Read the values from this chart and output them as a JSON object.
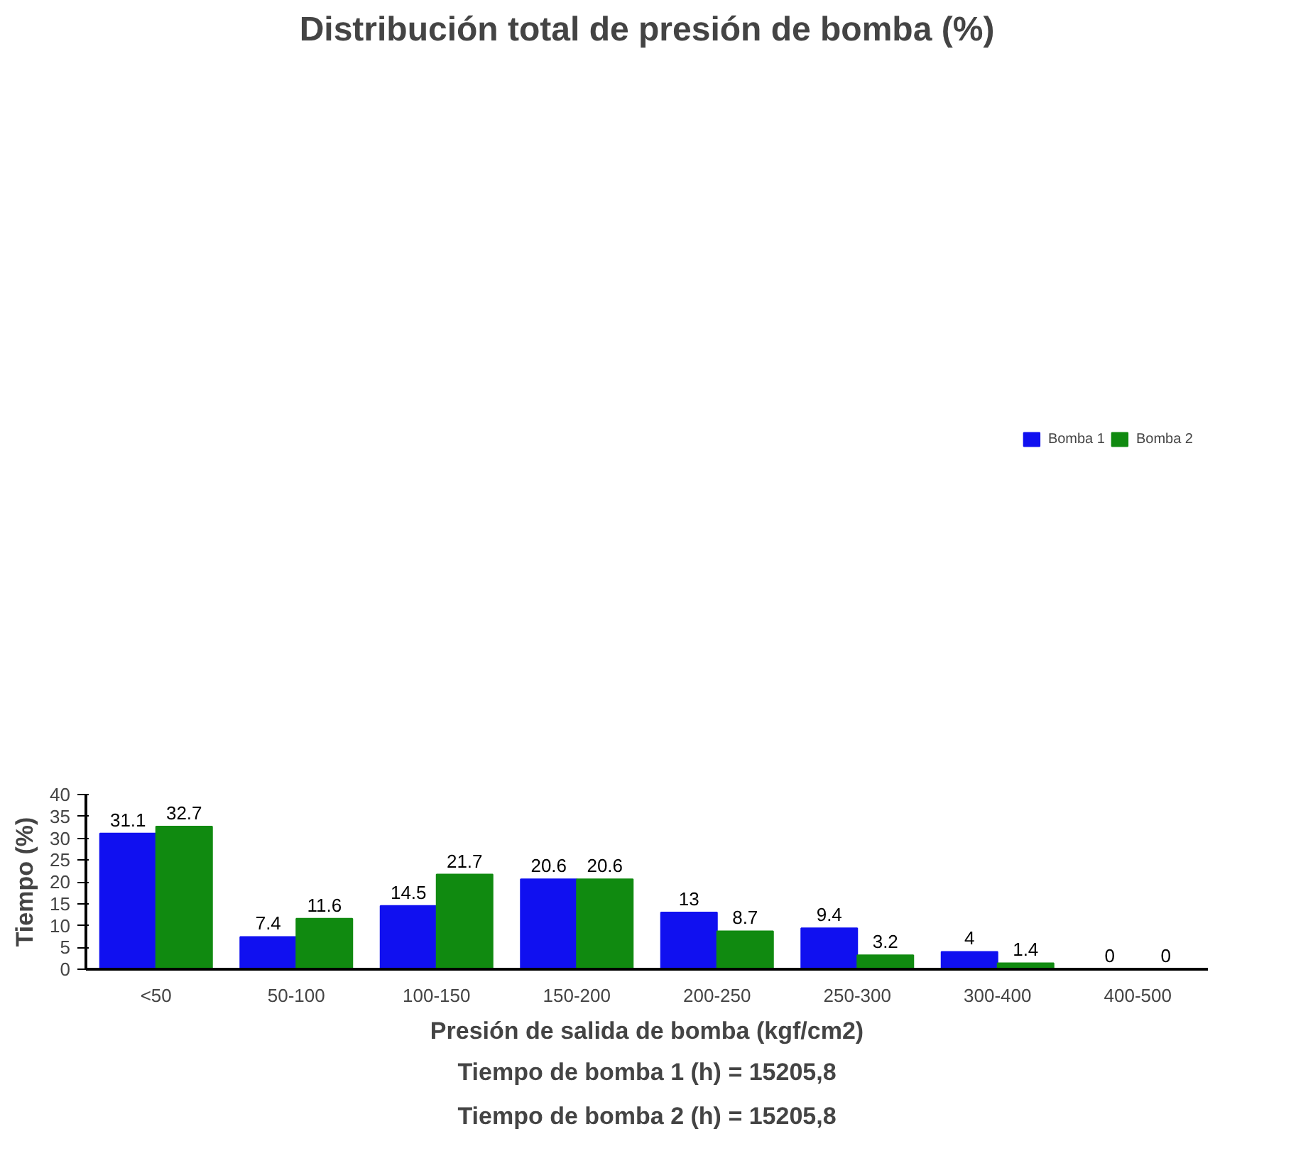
{
  "chart_data": {
    "type": "bar",
    "title": "Distribución total de presión de bomba (%)",
    "xlabel": "Presión de salida de bomba (kgf/cm2)",
    "ylabel": "Tiempo (%)",
    "categories": [
      "<50",
      "50-100",
      "100-150",
      "150-200",
      "200-250",
      "250-300",
      "300-400",
      "400-500"
    ],
    "series": [
      {
        "name": "Bomba 1",
        "color": "#1010f0",
        "values": [
          31.1,
          7.4,
          14.5,
          20.6,
          13,
          9.4,
          4,
          0
        ]
      },
      {
        "name": "Bomba 2",
        "color": "#108a10",
        "values": [
          32.7,
          11.6,
          21.7,
          20.6,
          8.7,
          3.2,
          1.4,
          0
        ]
      }
    ],
    "ylim": [
      0,
      40
    ],
    "yticks": [
      0,
      5,
      10,
      15,
      20,
      25,
      30,
      35,
      40
    ],
    "data_labels": true,
    "grid": false,
    "legend": "top right",
    "annotations": [
      "Tiempo de bomba 1 (h) = 15205,8",
      "Tiempo de bomba 2 (h) = 15205,8"
    ]
  }
}
